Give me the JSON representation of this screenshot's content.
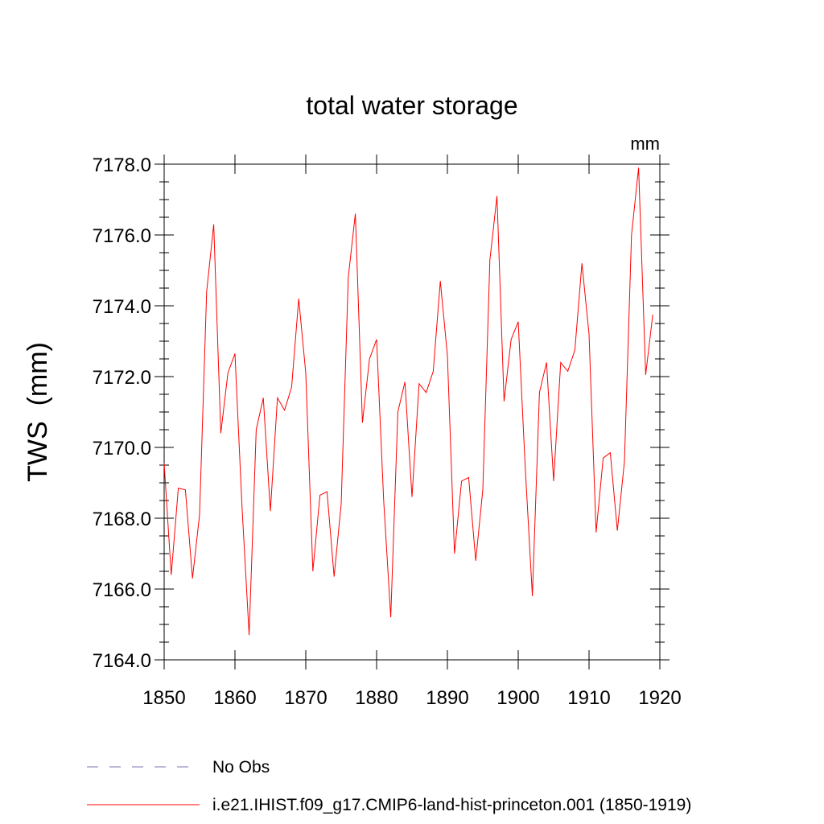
{
  "chart_data": {
    "type": "line",
    "title": "total water storage",
    "units_label": "mm",
    "ylabel": "TWS  (mm)",
    "xlabel": "",
    "xlim": [
      1850,
      1920
    ],
    "ylim": [
      7164.0,
      7178.0
    ],
    "x_ticks": [
      1850,
      1860,
      1870,
      1880,
      1890,
      1900,
      1910,
      1920
    ],
    "y_ticks": [
      7164.0,
      7166.0,
      7168.0,
      7170.0,
      7172.0,
      7174.0,
      7176.0,
      7178.0
    ],
    "y_tick_labels": [
      "7164.0",
      "7166.0",
      "7168.0",
      "7170.0",
      "7172.0",
      "7174.0",
      "7176.0",
      "7178.0"
    ],
    "grid": false,
    "legend_position": "bottom",
    "legend": [
      {
        "label": "No Obs",
        "color": "#7b6fb0",
        "style": "dashed"
      },
      {
        "label": "i.e21.IHIST.f09_g17.CMIP6-land-hist-princeton.001 (1850-1919)",
        "color": "#ff0000",
        "style": "solid"
      }
    ],
    "series": [
      {
        "name": "i.e21.IHIST.f09_g17.CMIP6-land-hist-princeton.001 (1850-1919)",
        "color": "#ff0000",
        "x": [
          1850,
          1851,
          1852,
          1853,
          1854,
          1855,
          1856,
          1857,
          1858,
          1859,
          1860,
          1861,
          1862,
          1863,
          1864,
          1865,
          1866,
          1867,
          1868,
          1869,
          1870,
          1871,
          1872,
          1873,
          1874,
          1875,
          1876,
          1877,
          1878,
          1879,
          1880,
          1881,
          1882,
          1883,
          1884,
          1885,
          1886,
          1887,
          1888,
          1889,
          1890,
          1891,
          1892,
          1893,
          1894,
          1895,
          1896,
          1897,
          1898,
          1899,
          1900,
          1901,
          1902,
          1903,
          1904,
          1905,
          1906,
          1907,
          1908,
          1909,
          1910,
          1911,
          1912,
          1913,
          1914,
          1915,
          1916,
          1917,
          1918,
          1919
        ],
        "values": [
          7169.55,
          7166.4,
          7168.85,
          7168.8,
          7166.3,
          7168.1,
          7174.4,
          7176.3,
          7170.4,
          7172.1,
          7172.65,
          7168.3,
          7164.7,
          7170.5,
          7171.4,
          7168.2,
          7171.4,
          7171.05,
          7171.7,
          7174.2,
          7172.1,
          7166.5,
          7168.65,
          7168.75,
          7166.35,
          7168.4,
          7174.8,
          7176.6,
          7170.7,
          7172.5,
          7173.05,
          7168.5,
          7165.2,
          7171.0,
          7171.85,
          7168.6,
          7171.8,
          7171.55,
          7172.15,
          7174.7,
          7172.6,
          7167.0,
          7169.05,
          7169.15,
          7166.8,
          7168.8,
          7175.3,
          7177.1,
          7171.3,
          7173.05,
          7173.55,
          7169.4,
          7165.8,
          7171.55,
          7172.4,
          7169.05,
          7172.4,
          7172.15,
          7172.75,
          7175.2,
          7173.2,
          7167.6,
          7169.7,
          7169.85,
          7167.65,
          7169.6,
          7176.0,
          7177.9,
          7172.05,
          7173.75
        ]
      }
    ]
  }
}
